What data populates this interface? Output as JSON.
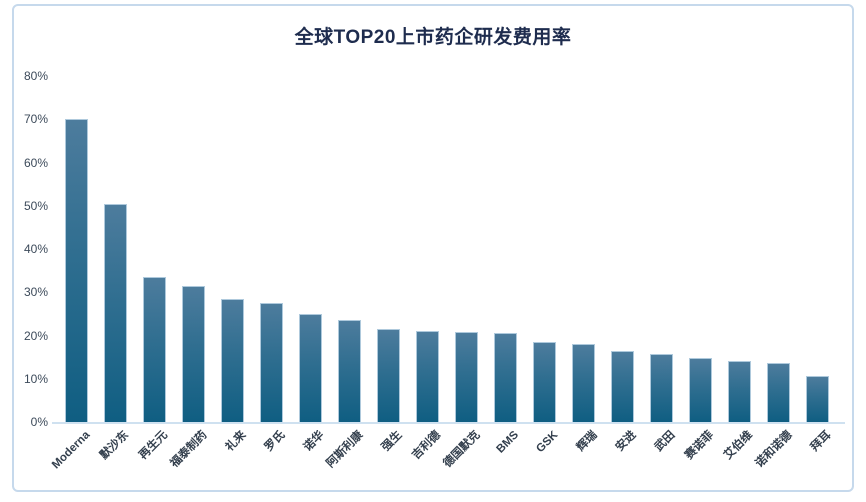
{
  "chart_data": {
    "type": "bar",
    "title": "全球TOP20上市药企研发费用率",
    "categories": [
      "Moderna",
      "默沙东",
      "再生元",
      "福泰制药",
      "礼来",
      "罗氏",
      "诺华",
      "阿斯利康",
      "强生",
      "吉利德",
      "德国默克",
      "BMS",
      "GSK",
      "辉瑞",
      "安进",
      "武田",
      "赛诺菲",
      "艾伯维",
      "诺和诺德",
      "拜耳"
    ],
    "values": [
      70,
      50.5,
      33.5,
      31.5,
      28.5,
      27.5,
      25,
      23.5,
      21.5,
      21,
      20.7,
      20.5,
      18.5,
      18,
      16.5,
      15.7,
      14.7,
      14,
      13.7,
      10.6
    ],
    "unit": "%",
    "xlabel": "",
    "ylabel": "",
    "ylim": [
      0,
      80
    ],
    "ytick_labels": [
      "0%",
      "10%",
      "20%",
      "30%",
      "40%",
      "50%",
      "60%",
      "70%",
      "80%"
    ],
    "grid": false,
    "legend": false,
    "colors": {
      "bar_gradient_top": "#4d7c9d",
      "bar_gradient_mid": "#2f6e90",
      "bar_gradient_bottom": "#0f5e82",
      "bar_edge": "#aec9dc",
      "axis_line": "#cfe1f0",
      "panel_border": "#c6d9ec",
      "title_text": "#1e2c4e",
      "tick_text": "#3c4a5a",
      "category_text": "#333f4d"
    }
  }
}
